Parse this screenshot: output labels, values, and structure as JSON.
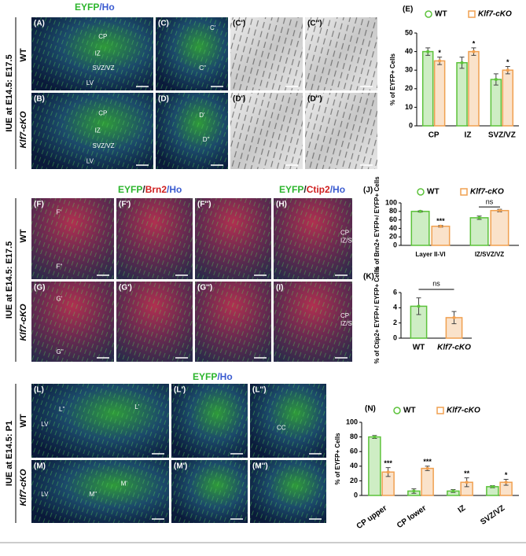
{
  "headers": [
    [
      "EYFP",
      "/Ho"
    ],
    [
      "EYFP",
      "/",
      "Brn2",
      "/Ho"
    ],
    [
      "EYFP",
      "/",
      "Ctip2",
      "/Ho"
    ],
    [
      "EYFP",
      "/Ho"
    ]
  ],
  "side_labels": [
    {
      "title": "IUE at E14.5: E17.5",
      "rows": [
        "WT",
        "Klf7-cKO"
      ]
    },
    {
      "title": "IUE at E14.5: E17.5",
      "rows": [
        "WT",
        "Klf7-cKO"
      ]
    },
    {
      "title": "IUE at E14.5: P1",
      "rows": [
        "WT",
        "Klf7-cKO"
      ]
    }
  ],
  "images": [
    {
      "label": "(A)",
      "texts": [
        "CP",
        "IZ",
        "SVZ/VZ",
        "LV"
      ]
    },
    {
      "label": "(B)",
      "texts": [
        "CP",
        "IZ",
        "SVZ/VZ",
        "LV"
      ]
    },
    {
      "label": "(C)",
      "texts": [
        "C'",
        "C''"
      ]
    },
    {
      "label": "(D)",
      "texts": [
        "D'",
        "D''"
      ]
    },
    {
      "label": "(C')"
    },
    {
      "label": "(C'')"
    },
    {
      "label": "(D')"
    },
    {
      "label": "(D'')"
    },
    {
      "label": "(F)",
      "texts": [
        "F'",
        "F''"
      ]
    },
    {
      "label": "(F')"
    },
    {
      "label": "(F'')"
    },
    {
      "label": "(H)",
      "texts": [
        "CP",
        "IZ/SVZ"
      ]
    },
    {
      "label": "(G)",
      "texts": [
        "G'",
        "G''"
      ]
    },
    {
      "label": "(G')"
    },
    {
      "label": "(G'')"
    },
    {
      "label": "(I)",
      "texts": [
        "CP",
        "IZ/SVZ"
      ]
    },
    {
      "label": "(L)",
      "texts": [
        "L''",
        "L'",
        "LV"
      ]
    },
    {
      "label": "(L')"
    },
    {
      "label": "(L'')",
      "texts": [
        "CC"
      ]
    },
    {
      "label": "(M)",
      "texts": [
        "M''",
        "M'",
        "LV"
      ]
    },
    {
      "label": "(M')"
    },
    {
      "label": "(M'')"
    }
  ],
  "chart_data": [
    {
      "type": "bar",
      "panel": "(E)",
      "ylabel": "% of EYFP+ Cells",
      "categories": [
        "CP",
        "IZ",
        "SVZ/VZ"
      ],
      "series": [
        {
          "name": "WT",
          "color": "#5cc23a",
          "values": [
            40,
            34,
            25
          ],
          "errors": [
            2,
            3,
            3
          ]
        },
        {
          "name": "Klf7-cKO",
          "color": "#f0a050",
          "values": [
            35,
            40,
            30
          ],
          "errors": [
            2,
            2,
            2
          ]
        }
      ],
      "significance": [
        "*",
        "*",
        "*"
      ],
      "ylim": [
        0,
        50
      ],
      "yticks": [
        0,
        10,
        20,
        30,
        40,
        50
      ]
    },
    {
      "type": "bar",
      "panel": "(J)",
      "ylabel": "% of Brn2+ EYFP+/ EYFP+ Cells",
      "categories": [
        "Layer II-VI",
        "IZ/SVZ/VZ"
      ],
      "series": [
        {
          "name": "WT",
          "color": "#5cc23a",
          "values": [
            80,
            65
          ],
          "errors": [
            1.5,
            4
          ]
        },
        {
          "name": "Klf7-cKO",
          "color": "#f0a050",
          "values": [
            45,
            82
          ],
          "errors": [
            2,
            3
          ]
        }
      ],
      "significance": [
        "***",
        "ns"
      ],
      "ylim": [
        0,
        100
      ],
      "yticks": [
        0,
        20,
        40,
        60,
        80,
        100
      ]
    },
    {
      "type": "bar",
      "panel": "(K)",
      "ylabel": "% of Ctip2+ EYFP+/ EYFP+ Cells",
      "categories": [
        "WT",
        "Klf7-cKO"
      ],
      "values": [
        4.2,
        2.7
      ],
      "errors": [
        1.1,
        0.8
      ],
      "colors": [
        "#5cc23a",
        "#f0a050"
      ],
      "annotation": "ns",
      "ylim": [
        0,
        6
      ],
      "yticks": [
        0,
        2,
        4,
        6
      ]
    },
    {
      "type": "bar",
      "panel": "(N)",
      "ylabel": "% of EYFP+ Cells",
      "categories": [
        "CP upper",
        "CP lower",
        "IZ",
        "SVZ/VZ"
      ],
      "series": [
        {
          "name": "WT",
          "color": "#5cc23a",
          "values": [
            80,
            6,
            6,
            12
          ],
          "errors": [
            2,
            3,
            2,
            1.5
          ]
        },
        {
          "name": "Klf7-cKO",
          "color": "#f0a050",
          "values": [
            32,
            37,
            18,
            18
          ],
          "errors": [
            6,
            3,
            6,
            4
          ]
        }
      ],
      "significance": [
        "***",
        "***",
        "**",
        "*"
      ],
      "ylim": [
        0,
        100
      ],
      "yticks": [
        0,
        20,
        40,
        60,
        80,
        100
      ]
    }
  ]
}
